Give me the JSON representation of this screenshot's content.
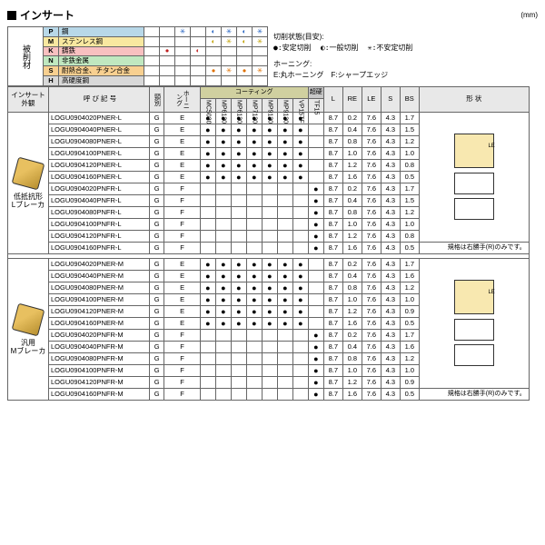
{
  "title": "インサート",
  "unit": "(mm)",
  "materials_label": "被削材",
  "materials": [
    {
      "code": "P",
      "name": "鋼",
      "cls": "P"
    },
    {
      "code": "M",
      "name": "ステンレス鋼",
      "cls": "M"
    },
    {
      "code": "K",
      "name": "鋳鉄",
      "cls": "K"
    },
    {
      "code": "N",
      "name": "非鉄金属",
      "cls": "N"
    },
    {
      "code": "S",
      "name": "耐熱合金、チタン合金",
      "cls": "S"
    },
    {
      "code": "H",
      "name": "高硬度鋼",
      "cls": "H"
    }
  ],
  "legend": {
    "cond_title": "切削状態(目安):",
    "stable": "●:安定切削",
    "normal": "◐:一般切削",
    "unstable": "✳:不安定切削",
    "honing_title": "ホーニング:",
    "honing": "E:丸ホーニング　F:シャープエッジ"
  },
  "headers": {
    "appearance": "インサート外観",
    "code": "呼 び 記 号",
    "class": "頸別",
    "honing": "ホーニング",
    "coating": "コーティング",
    "super": "超硬",
    "coat_cols": [
      "MC5020",
      "MP6120",
      "MP6130",
      "MP7130",
      "MP9120",
      "MP9130",
      "VP15TF"
    ],
    "super_cols": [
      "TF15"
    ],
    "dims": [
      "L",
      "RE",
      "LE",
      "S",
      "BS"
    ],
    "shape": "形 状"
  },
  "groups": [
    {
      "app_label": "低抵抗形\nLブレーカ",
      "rows": [
        {
          "code": "LOGU0904020PNER-L",
          "k": "G",
          "h": "E",
          "c": [
            1,
            1,
            1,
            1,
            1,
            1,
            1
          ],
          "s": [
            0
          ],
          "d": [
            "8.7",
            "0.2",
            "7.6",
            "4.3",
            "1.7"
          ]
        },
        {
          "code": "LOGU0904040PNER-L",
          "k": "G",
          "h": "E",
          "c": [
            1,
            1,
            1,
            1,
            1,
            1,
            1
          ],
          "s": [
            0
          ],
          "d": [
            "8.7",
            "0.4",
            "7.6",
            "4.3",
            "1.5"
          ]
        },
        {
          "code": "LOGU0904080PNER-L",
          "k": "G",
          "h": "E",
          "c": [
            1,
            1,
            1,
            1,
            1,
            1,
            1
          ],
          "s": [
            0
          ],
          "d": [
            "8.7",
            "0.8",
            "7.6",
            "4.3",
            "1.2"
          ]
        },
        {
          "code": "LOGU0904100PNER-L",
          "k": "G",
          "h": "E",
          "c": [
            1,
            1,
            1,
            1,
            1,
            1,
            1
          ],
          "s": [
            0
          ],
          "d": [
            "8.7",
            "1.0",
            "7.6",
            "4.3",
            "1.0"
          ]
        },
        {
          "code": "LOGU0904120PNER-L",
          "k": "G",
          "h": "E",
          "c": [
            1,
            1,
            1,
            1,
            1,
            1,
            1
          ],
          "s": [
            0
          ],
          "d": [
            "8.7",
            "1.2",
            "7.6",
            "4.3",
            "0.8"
          ]
        },
        {
          "code": "LOGU0904160PNER-L",
          "k": "G",
          "h": "E",
          "c": [
            1,
            1,
            1,
            1,
            1,
            1,
            1
          ],
          "s": [
            0
          ],
          "d": [
            "8.7",
            "1.6",
            "7.6",
            "4.3",
            "0.5"
          ]
        },
        {
          "code": "LOGU0904020PNFR-L",
          "k": "G",
          "h": "F",
          "c": [
            0,
            0,
            0,
            0,
            0,
            0,
            0
          ],
          "s": [
            1
          ],
          "d": [
            "8.7",
            "0.2",
            "7.6",
            "4.3",
            "1.7"
          ]
        },
        {
          "code": "LOGU0904040PNFR-L",
          "k": "G",
          "h": "F",
          "c": [
            0,
            0,
            0,
            0,
            0,
            0,
            0
          ],
          "s": [
            1
          ],
          "d": [
            "8.7",
            "0.4",
            "7.6",
            "4.3",
            "1.5"
          ]
        },
        {
          "code": "LOGU0904080PNFR-L",
          "k": "G",
          "h": "F",
          "c": [
            0,
            0,
            0,
            0,
            0,
            0,
            0
          ],
          "s": [
            1
          ],
          "d": [
            "8.7",
            "0.8",
            "7.6",
            "4.3",
            "1.2"
          ]
        },
        {
          "code": "LOGU0904100PNFR-L",
          "k": "G",
          "h": "F",
          "c": [
            0,
            0,
            0,
            0,
            0,
            0,
            0
          ],
          "s": [
            1
          ],
          "d": [
            "8.7",
            "1.0",
            "7.6",
            "4.3",
            "1.0"
          ]
        },
        {
          "code": "LOGU0904120PNFR-L",
          "k": "G",
          "h": "F",
          "c": [
            0,
            0,
            0,
            0,
            0,
            0,
            0
          ],
          "s": [
            1
          ],
          "d": [
            "8.7",
            "1.2",
            "7.6",
            "4.3",
            "0.8"
          ]
        },
        {
          "code": "LOGU0904160PNFR-L",
          "k": "G",
          "h": "F",
          "c": [
            0,
            0,
            0,
            0,
            0,
            0,
            0
          ],
          "s": [
            1
          ],
          "d": [
            "8.7",
            "1.6",
            "7.6",
            "4.3",
            "0.5"
          ]
        }
      ],
      "note": "規格は右勝手(R)のみです。"
    },
    {
      "app_label": "汎用\nMブレーカ",
      "rows": [
        {
          "code": "LOGU0904020PNER-M",
          "k": "G",
          "h": "E",
          "c": [
            1,
            1,
            1,
            1,
            1,
            1,
            1
          ],
          "s": [
            0
          ],
          "d": [
            "8.7",
            "0.2",
            "7.6",
            "4.3",
            "1.7"
          ]
        },
        {
          "code": "LOGU0904040PNER-M",
          "k": "G",
          "h": "E",
          "c": [
            1,
            1,
            1,
            1,
            1,
            1,
            1
          ],
          "s": [
            0
          ],
          "d": [
            "8.7",
            "0.4",
            "7.6",
            "4.3",
            "1.6"
          ]
        },
        {
          "code": "LOGU0904080PNER-M",
          "k": "G",
          "h": "E",
          "c": [
            1,
            1,
            1,
            1,
            1,
            1,
            1
          ],
          "s": [
            0
          ],
          "d": [
            "8.7",
            "0.8",
            "7.6",
            "4.3",
            "1.2"
          ]
        },
        {
          "code": "LOGU0904100PNER-M",
          "k": "G",
          "h": "E",
          "c": [
            1,
            1,
            1,
            1,
            1,
            1,
            1
          ],
          "s": [
            0
          ],
          "d": [
            "8.7",
            "1.0",
            "7.6",
            "4.3",
            "1.0"
          ]
        },
        {
          "code": "LOGU0904120PNER-M",
          "k": "G",
          "h": "E",
          "c": [
            1,
            1,
            1,
            1,
            1,
            1,
            1
          ],
          "s": [
            0
          ],
          "d": [
            "8.7",
            "1.2",
            "7.6",
            "4.3",
            "0.9"
          ]
        },
        {
          "code": "LOGU0904160PNER-M",
          "k": "G",
          "h": "E",
          "c": [
            1,
            1,
            1,
            1,
            1,
            1,
            1
          ],
          "s": [
            0
          ],
          "d": [
            "8.7",
            "1.6",
            "7.6",
            "4.3",
            "0.5"
          ]
        },
        {
          "code": "LOGU0904020PNFR-M",
          "k": "G",
          "h": "F",
          "c": [
            0,
            0,
            0,
            0,
            0,
            0,
            0
          ],
          "s": [
            1
          ],
          "d": [
            "8.7",
            "0.2",
            "7.6",
            "4.3",
            "1.7"
          ]
        },
        {
          "code": "LOGU0904040PNFR-M",
          "k": "G",
          "h": "F",
          "c": [
            0,
            0,
            0,
            0,
            0,
            0,
            0
          ],
          "s": [
            1
          ],
          "d": [
            "8.7",
            "0.4",
            "7.6",
            "4.3",
            "1.6"
          ]
        },
        {
          "code": "LOGU0904080PNFR-M",
          "k": "G",
          "h": "F",
          "c": [
            0,
            0,
            0,
            0,
            0,
            0,
            0
          ],
          "s": [
            1
          ],
          "d": [
            "8.7",
            "0.8",
            "7.6",
            "4.3",
            "1.2"
          ]
        },
        {
          "code": "LOGU0904100PNFR-M",
          "k": "G",
          "h": "F",
          "c": [
            0,
            0,
            0,
            0,
            0,
            0,
            0
          ],
          "s": [
            1
          ],
          "d": [
            "8.7",
            "1.0",
            "7.6",
            "4.3",
            "1.0"
          ]
        },
        {
          "code": "LOGU0904120PNFR-M",
          "k": "G",
          "h": "F",
          "c": [
            0,
            0,
            0,
            0,
            0,
            0,
            0
          ],
          "s": [
            1
          ],
          "d": [
            "8.7",
            "1.2",
            "7.6",
            "4.3",
            "0.9"
          ]
        },
        {
          "code": "LOGU0904160PNFR-M",
          "k": "G",
          "h": "F",
          "c": [
            0,
            0,
            0,
            0,
            0,
            0,
            0
          ],
          "s": [
            1
          ],
          "d": [
            "8.7",
            "1.6",
            "7.6",
            "4.3",
            "0.5"
          ]
        }
      ],
      "note": "規格は右勝手(R)のみです。"
    }
  ],
  "mat_marks": {
    "p": [
      "",
      "",
      "✳",
      "",
      "◐",
      "✳",
      "◐",
      "✳"
    ],
    "m": [
      "",
      "",
      "",
      "",
      "◐",
      "✳",
      "◐",
      "✳"
    ],
    "k": [
      "",
      "●",
      "",
      "◐",
      "",
      "",
      "",
      ""
    ],
    "n": [
      "",
      "",
      "",
      "",
      "",
      "",
      "",
      ""
    ],
    "s": [
      "",
      "",
      "",
      "",
      "●",
      "✳",
      "●",
      "✳"
    ],
    "h": [
      "",
      "",
      "",
      "",
      "",
      "",
      "",
      ""
    ]
  }
}
